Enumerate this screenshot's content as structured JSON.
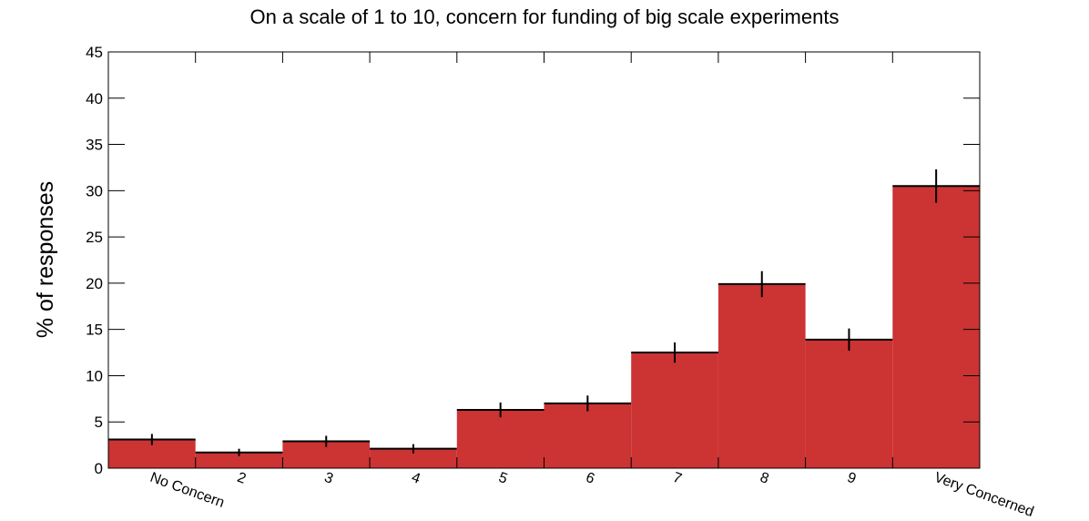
{
  "chart_data": {
    "type": "bar",
    "title": "On a scale of 1 to 10, concern for funding of big scale experiments",
    "y_label": "% of responses",
    "categories": [
      "No Concern",
      "2",
      "3",
      "4",
      "5",
      "6",
      "7",
      "8",
      "9",
      "Very Concerned"
    ],
    "series": [
      {
        "color": "#cc3333",
        "values": [
          3.1,
          1.7,
          2.9,
          2.1,
          6.3,
          7.0,
          12.5,
          19.9,
          13.9,
          30.5
        ],
        "errors": [
          0.6,
          0.4,
          0.6,
          0.5,
          0.8,
          0.85,
          1.1,
          1.4,
          1.2,
          1.8
        ]
      }
    ],
    "ylim": [
      0,
      45
    ],
    "yticks": [
      0,
      5,
      10,
      15,
      20,
      25,
      30,
      35,
      40,
      45
    ]
  }
}
